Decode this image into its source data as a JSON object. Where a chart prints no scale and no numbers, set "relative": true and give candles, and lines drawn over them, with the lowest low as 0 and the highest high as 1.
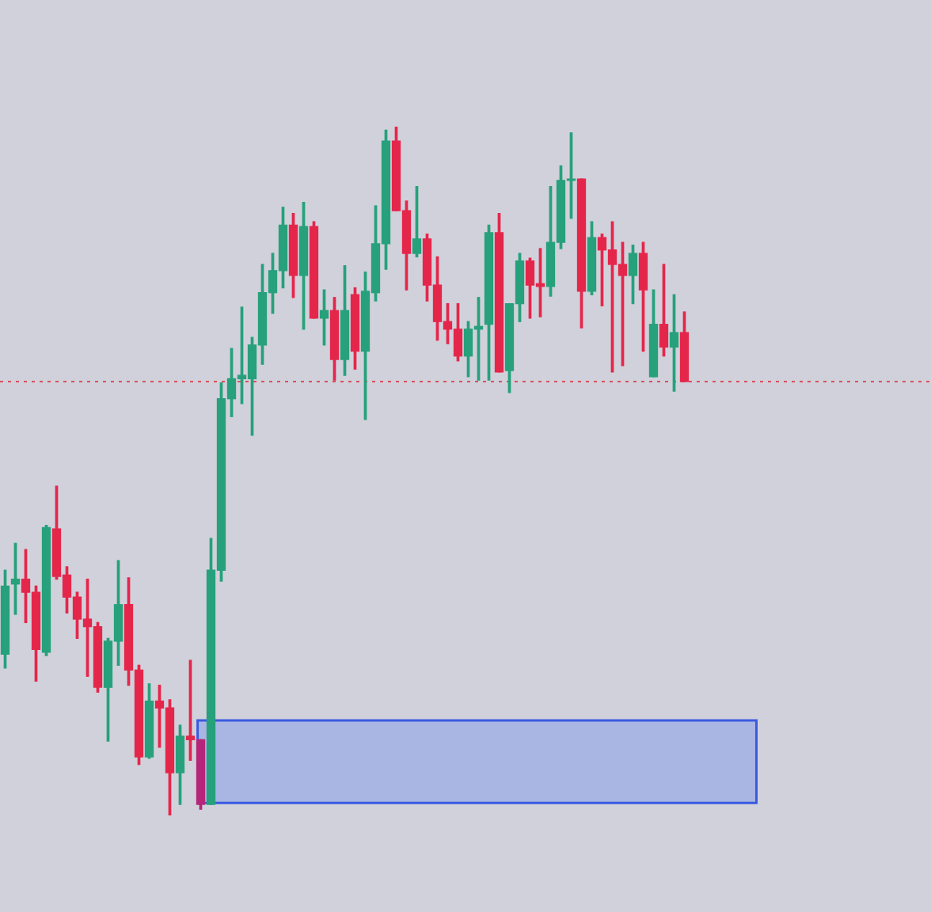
{
  "chart_data": {
    "type": "candlestick",
    "relative": true,
    "categories": [
      null,
      null,
      null,
      null,
      null,
      null,
      null,
      null,
      null,
      null,
      null,
      null,
      null,
      null,
      null,
      null,
      null,
      null,
      null,
      null,
      null,
      null,
      null,
      null,
      null,
      null,
      null,
      null,
      null,
      null,
      null,
      null,
      null,
      null,
      null,
      null,
      null,
      null,
      null,
      null,
      null,
      null,
      null,
      null,
      null,
      null,
      null,
      null,
      null,
      null,
      null,
      null,
      null,
      null,
      null,
      null,
      null,
      null,
      null,
      null,
      null,
      null,
      null,
      null,
      null,
      null,
      null
    ],
    "ohlc": [
      [
        0.234,
        0.356,
        0.214,
        0.333
      ],
      [
        0.336,
        0.395,
        0.292,
        0.343
      ],
      [
        0.343,
        0.386,
        0.28,
        0.324
      ],
      [
        0.324,
        0.333,
        0.195,
        0.241
      ],
      [
        0.237,
        0.421,
        0.232,
        0.418
      ],
      [
        0.416,
        0.478,
        0.343,
        0.347
      ],
      [
        0.349,
        0.361,
        0.294,
        0.317
      ],
      [
        0.317,
        0.324,
        0.257,
        0.285
      ],
      [
        0.285,
        0.343,
        0.202,
        0.274
      ],
      [
        0.274,
        0.28,
        0.179,
        0.186
      ],
      [
        0.186,
        0.257,
        0.108,
        0.253
      ],
      [
        0.253,
        0.37,
        0.218,
        0.306
      ],
      [
        0.306,
        0.345,
        0.189,
        0.211
      ],
      [
        0.211,
        0.218,
        0.074,
        0.085
      ],
      [
        0.085,
        0.191,
        0.083,
        0.166
      ],
      [
        0.166,
        0.189,
        0.099,
        0.156
      ],
      [
        0.156,
        0.168,
        0,
        0.062
      ],
      [
        0.062,
        0.131,
        0.016,
        0.115
      ],
      [
        0.115,
        0.225,
        0.08,
        0.11
      ],
      [
        0.11,
        0.11,
        0.009,
        0.016
      ],
      [
        0.016,
        0.402,
        0.016,
        0.356
      ],
      [
        0.356,
        0.628,
        0.34,
        0.605
      ],
      [
        0.605,
        0.678,
        0.579,
        0.634
      ],
      [
        0.634,
        0.738,
        0.598,
        0.639
      ],
      [
        0.634,
        0.694,
        0.552,
        0.683
      ],
      [
        0.683,
        0.8,
        0.655,
        0.759
      ],
      [
        0.759,
        0.816,
        0.729,
        0.791
      ],
      [
        0.791,
        0.883,
        0.766,
        0.857
      ],
      [
        0.857,
        0.874,
        0.752,
        0.784
      ],
      [
        0.784,
        0.89,
        0.706,
        0.855
      ],
      [
        0.855,
        0.862,
        0.722,
        0.722
      ],
      [
        0.722,
        0.763,
        0.683,
        0.733
      ],
      [
        0.733,
        0.752,
        0.632,
        0.662
      ],
      [
        0.662,
        0.798,
        0.639,
        0.733
      ],
      [
        0.756,
        0.766,
        0.648,
        0.674
      ],
      [
        0.674,
        0.789,
        0.575,
        0.761
      ],
      [
        0.759,
        0.885,
        0.747,
        0.83
      ],
      [
        0.83,
        0.995,
        0.793,
        0.979
      ],
      [
        0.979,
        1,
        0.878,
        0.878
      ],
      [
        0.878,
        0.892,
        0.763,
        0.816
      ],
      [
        0.816,
        0.913,
        0.811,
        0.837
      ],
      [
        0.837,
        0.844,
        0.747,
        0.77
      ],
      [
        0.77,
        0.811,
        0.69,
        0.717
      ],
      [
        0.717,
        0.743,
        0.685,
        0.706
      ],
      [
        0.706,
        0.743,
        0.66,
        0.667
      ],
      [
        0.667,
        0.717,
        0.637,
        0.706
      ],
      [
        0.706,
        0.752,
        0.632,
        0.71
      ],
      [
        0.713,
        0.857,
        0.632,
        0.846
      ],
      [
        0.846,
        0.874,
        0.644,
        0.644
      ],
      [
        0.646,
        0.743,
        0.614,
        0.743
      ],
      [
        0.743,
        0.816,
        0.717,
        0.805
      ],
      [
        0.805,
        0.809,
        0.722,
        0.77
      ],
      [
        0.772,
        0.823,
        0.724,
        0.768
      ],
      [
        0.768,
        0.913,
        0.754,
        0.832
      ],
      [
        0.832,
        0.943,
        0.823,
        0.922
      ],
      [
        0.922,
        0.991,
        0.867,
        0.924
      ],
      [
        0.924,
        0.924,
        0.708,
        0.761
      ],
      [
        0.761,
        0.862,
        0.756,
        0.839
      ],
      [
        0.839,
        0.844,
        0.74,
        0.821
      ],
      [
        0.821,
        0.862,
        0.644,
        0.8
      ],
      [
        0.8,
        0.832,
        0.653,
        0.784
      ],
      [
        0.784,
        0.828,
        0.743,
        0.816
      ],
      [
        0.816,
        0.832,
        0.674,
        0.763
      ],
      [
        0.637,
        0.763,
        0.637,
        0.713
      ],
      [
        0.713,
        0.8,
        0.667,
        0.68
      ],
      [
        0.68,
        0.756,
        0.616,
        0.701
      ],
      [
        0.701,
        0.731,
        0.63,
        0.63
      ]
    ],
    "colors": [
      "#26a17b",
      "#26a17b",
      "#e5264b",
      "#e5264b",
      "#26a17b",
      "#e5264b",
      "#e5264b",
      "#e5264b",
      "#e5264b",
      "#e5264b",
      "#26a17b",
      "#26a17b",
      "#e5264b",
      "#e5264b",
      "#26a17b",
      "#e5264b",
      "#e5264b",
      "#26a17b",
      "#e5264b",
      "#b5267a",
      "#26a17b",
      "#26a17b",
      "#26a17b",
      "#26a17b",
      "#26a17b",
      "#26a17b",
      "#26a17b",
      "#26a17b",
      "#e5264b",
      "#26a17b",
      "#e5264b",
      "#26a17b",
      "#e5264b",
      "#26a17b",
      "#e5264b",
      "#26a17b",
      "#26a17b",
      "#26a17b",
      "#e5264b",
      "#e5264b",
      "#26a17b",
      "#e5264b",
      "#e5264b",
      "#e5264b",
      "#e5264b",
      "#26a17b",
      "#26a17b",
      "#26a17b",
      "#e5264b",
      "#26a17b",
      "#26a17b",
      "#e5264b",
      "#e5264b",
      "#26a17b",
      "#26a17b",
      "#26a17b",
      "#e5264b",
      "#26a17b",
      "#e5264b",
      "#e5264b",
      "#e5264b",
      "#26a17b",
      "#e5264b",
      "#26a17b",
      "#e5264b",
      "#26a17b",
      "#e5264b"
    ],
    "ref_lines": [
      {
        "axis": "y",
        "value": 0.63,
        "color": "#d9505a",
        "line_style": "dotted"
      }
    ],
    "bands": [
      {
        "axis": "y",
        "from": 0.018,
        "to": 0.138,
        "color": "#a9b5e3"
      }
    ]
  }
}
